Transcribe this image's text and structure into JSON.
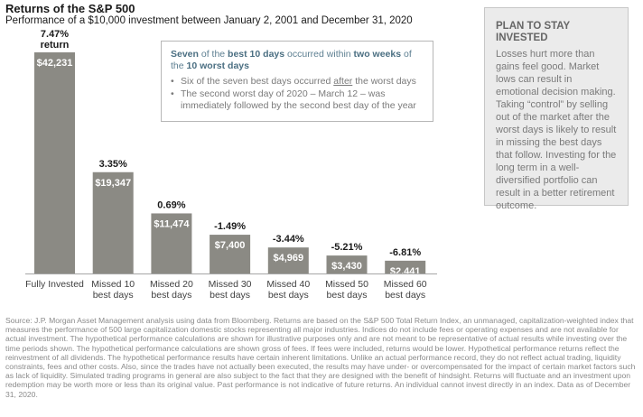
{
  "title": "Returns of the S&P 500",
  "subtitle": "Performance of a $10,000 investment between January 2, 2001 and December 31, 2020",
  "callout": {
    "headline_1": "Seven",
    "headline_2": " of the ",
    "headline_3": "best 10 days",
    "headline_4": " occurred within ",
    "headline_5": "two weeks",
    "headline_6": " of the ",
    "headline_7": "10 worst days",
    "bullet_char": "•",
    "bullet1_pre": "Six of the seven best days occurred ",
    "bullet1_u": "after",
    "bullet1_post": " the worst days",
    "bullet2": "The second worst day of 2020 – March 12 – was immediately followed by the second best day of the year"
  },
  "sidebar": {
    "title": "PLAN TO STAY INVESTED",
    "body": "Losses hurt more than gains feel good. Market lows can result in emotional decision making. Taking “control” by selling out of the market after the worst days is likely to result in missing the best days that follow. Investing for the long term in a well-diversified portfolio can result in a better retirement outcome."
  },
  "source": "Source: J.P. Morgan Asset Management analysis using data from Bloomberg. Returns are based on the S&P 500 Total Return Index, an unmanaged, capitalization-weighted index that measures the performance of 500 large capitalization domestic stocks representing all major industries. Indices do not include fees or operating expenses and are not available for actual investment. The hypothetical performance calculations are shown for illustrative purposes only and are not meant to be representative of actual results while investing over the time periods shown. The hypothetical performance calculations are shown gross of fees. If fees were included, returns would be lower. Hypothetical performance returns reflect the reinvestment of all dividends. The hypothetical performance results have certain inherent limitations. Unlike an actual performance record, they do not reflect actual trading, liquidity constraints, fees and other costs. Also, since the trades have not actually been executed, the results may have under- or overcompensated for the impact of certain market factors such as lack of liquidity. Simulated trading programs in general are also subject to the fact that they are designed with the benefit of hindsight. Returns will fluctuate and an investment upon redemption may be worth more or less than its original value. Past performance is not indicative of future returns. An individual cannot invest directly in an index. Data as of December 31, 2020.",
  "chart_data": {
    "type": "bar",
    "categories": [
      "Fully Invested",
      "Missed 10 best days",
      "Missed 20 best days",
      "Missed 30 best days",
      "Missed 40 best days",
      "Missed 50 best days",
      "Missed 60 best days"
    ],
    "category_lines": [
      [
        "Fully Invested"
      ],
      [
        "Missed 10",
        "best days"
      ],
      [
        "Missed 20",
        "best days"
      ],
      [
        "Missed 30",
        "best days"
      ],
      [
        "Missed 40",
        "best days"
      ],
      [
        "Missed 50",
        "best days"
      ],
      [
        "Missed 60",
        "best days"
      ]
    ],
    "values": [
      42231,
      19347,
      11474,
      7400,
      4969,
      3430,
      2441
    ],
    "value_labels": [
      "$42,231",
      "$19,347",
      "$11,474",
      "$7,400",
      "$4,969",
      "$3,430",
      "$2,441"
    ],
    "return_labels": [
      "7.47%",
      "3.35%",
      "0.69%",
      "-1.49%",
      "-3.44%",
      "-5.21%",
      "-6.81%"
    ],
    "first_return_suffix": "return",
    "ylim": [
      0,
      42231
    ],
    "grid": false,
    "colors": {
      "bar": "#8b8a84",
      "axis": "#a6a6a6",
      "value_text": "#ffffff",
      "return_text": "#1a1a1a",
      "category_text": "#404040"
    }
  }
}
